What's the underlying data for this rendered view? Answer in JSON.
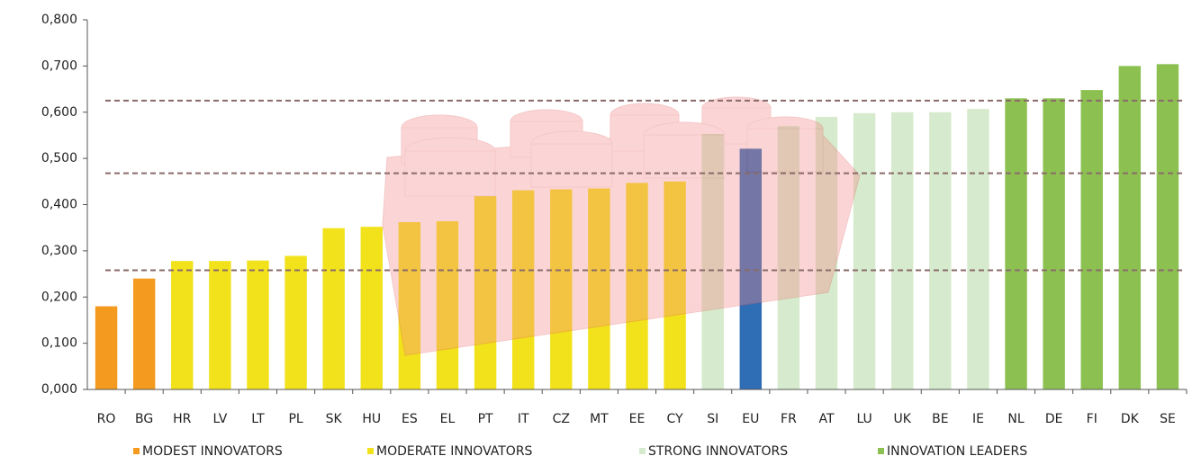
{
  "chart_data": {
    "type": "bar",
    "categories": [
      "RO",
      "BG",
      "HR",
      "LV",
      "LT",
      "PL",
      "SK",
      "HU",
      "ES",
      "EL",
      "PT",
      "IT",
      "CZ",
      "MT",
      "EE",
      "CY",
      "SI",
      "EU",
      "FR",
      "AT",
      "LU",
      "UK",
      "BE",
      "IE",
      "NL",
      "DE",
      "FI",
      "DK",
      "SE"
    ],
    "values": [
      0.18,
      0.24,
      0.278,
      0.278,
      0.279,
      0.289,
      0.349,
      0.352,
      0.362,
      0.364,
      0.418,
      0.431,
      0.433,
      0.435,
      0.447,
      0.45,
      0.553,
      0.521,
      0.57,
      0.59,
      0.598,
      0.6,
      0.6,
      0.607,
      0.63,
      0.63,
      0.648,
      0.7,
      0.704
    ],
    "bar_colors": [
      "#f39a1f",
      "#f39a1f",
      "#f2e21c",
      "#f2e21c",
      "#f2e21c",
      "#f2e21c",
      "#f2e21c",
      "#f2e21c",
      "#f2e21c",
      "#f2e21c",
      "#f2e21c",
      "#f2e21c",
      "#f2e21c",
      "#f2e21c",
      "#f2e21c",
      "#f2e21c",
      "#d6ebcd",
      "#2f6db4",
      "#d6ebcd",
      "#d6ebcd",
      "#d6ebcd",
      "#d6ebcd",
      "#d6ebcd",
      "#d6ebcd",
      "#8cc152",
      "#8cc152",
      "#8cc152",
      "#8cc152",
      "#8cc152"
    ],
    "legend": [
      {
        "name": "MODEST INNOVATORS",
        "color": "#f39a1f"
      },
      {
        "name": "MODERATE INNOVATORS",
        "color": "#f2e21c"
      },
      {
        "name": "STRONG INNOVATORS",
        "color": "#d6ebcd"
      },
      {
        "name": "INNOVATION LEADERS",
        "color": "#8cc152"
      }
    ],
    "reference_lines": [
      0.258,
      0.468,
      0.625
    ],
    "ylim": [
      0,
      0.8
    ],
    "yticks": [
      {
        "value": 0,
        "label": "0,000"
      },
      {
        "value": 0.1,
        "label": "0,100"
      },
      {
        "value": 0.2,
        "label": "0,200"
      },
      {
        "value": 0.3,
        "label": "0,300"
      },
      {
        "value": 0.4,
        "label": "0,400"
      },
      {
        "value": 0.5,
        "label": "0,500"
      },
      {
        "value": 0.6,
        "label": "0,600"
      },
      {
        "value": 0.7,
        "label": "0,700"
      },
      {
        "value": 0.8,
        "label": "0,800"
      }
    ]
  }
}
